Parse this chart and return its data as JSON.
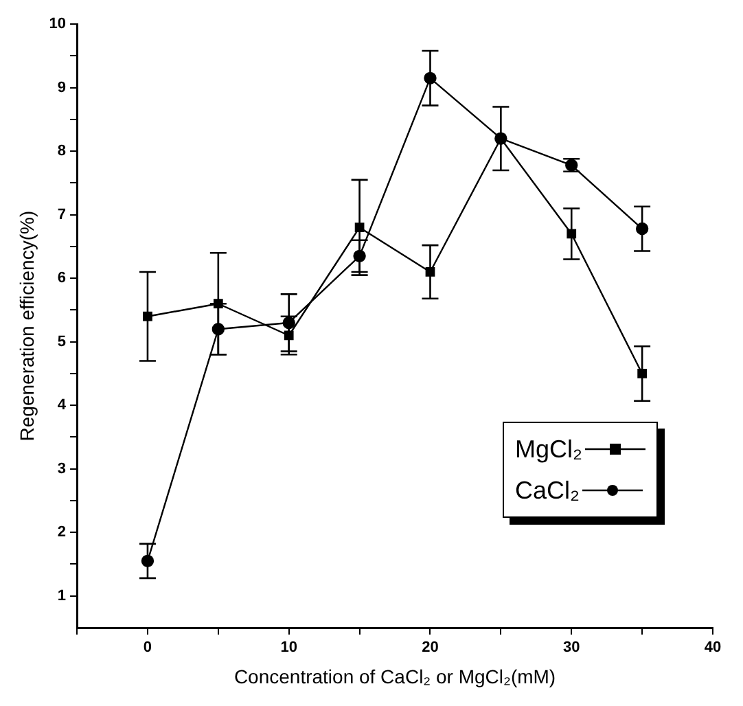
{
  "chart_data": {
    "type": "line",
    "xlabel": "Concentration of CaCl₂ or MgCl₂(mM)",
    "ylabel": "Regeneration efficiency(%)",
    "x": [
      0,
      5,
      10,
      15,
      20,
      25,
      30,
      35
    ],
    "series": [
      {
        "name": "MgCl₂",
        "color": "#000000",
        "marker": "square",
        "values": [
          5.4,
          5.6,
          5.1,
          6.8,
          6.1,
          8.2,
          6.7,
          4.5
        ],
        "errors": [
          0.7,
          0.8,
          0.3,
          0.75,
          0.42,
          0.5,
          0.4,
          0.43
        ]
      },
      {
        "name": "CaCl₂",
        "color": "#000000",
        "marker": "circle",
        "values": [
          1.55,
          5.2,
          5.3,
          6.35,
          9.15,
          8.2,
          7.78,
          6.78
        ],
        "errors": [
          0.27,
          0.4,
          0.45,
          0.25,
          0.43,
          null,
          0.1,
          0.35
        ]
      }
    ],
    "xlim": [
      -5,
      40
    ],
    "xticks": [
      {
        "value": -5,
        "label": null
      },
      0,
      {
        "value": 5,
        "label": null
      },
      10,
      {
        "value": 15,
        "label": null
      },
      20,
      {
        "value": 25,
        "label": null
      },
      30,
      {
        "value": 35,
        "label": null
      },
      40
    ],
    "ylim": [
      0.5,
      10
    ],
    "yticks": [
      1,
      {
        "value": 1.5,
        "label": null
      },
      2,
      {
        "value": 2.5,
        "label": null
      },
      3,
      {
        "value": 3.5,
        "label": null
      },
      4,
      {
        "value": 4.5,
        "label": null
      },
      5,
      {
        "value": 5.5,
        "label": null
      },
      6,
      {
        "value": 6.5,
        "label": null
      },
      7,
      {
        "value": 7.5,
        "label": null
      },
      8,
      {
        "value": 8.5,
        "label": null
      },
      9,
      {
        "value": 9.5,
        "label": null
      },
      10
    ],
    "grid": false,
    "legend": "bottom right",
    "line_style": "solid"
  }
}
